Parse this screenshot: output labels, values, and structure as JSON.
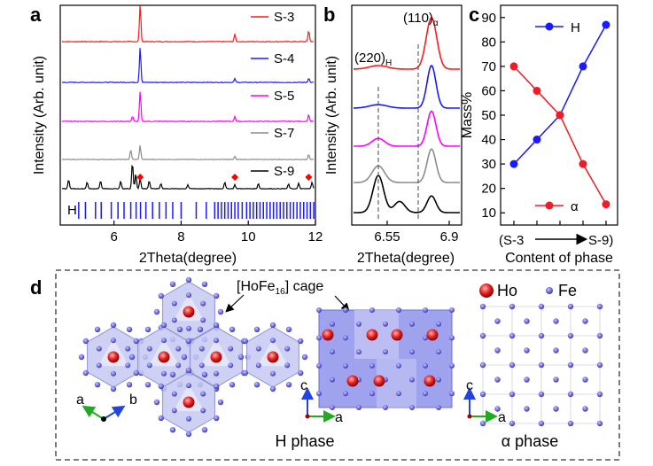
{
  "panel_labels": {
    "a": "a",
    "b": "b",
    "c": "c",
    "d": "d"
  },
  "chart_data": [
    {
      "type": "line",
      "panel": "a",
      "xlabel": "2Theta(degree)",
      "ylabel": "Intensity (Arb. unit)",
      "xlim": [
        4.4,
        12.0
      ],
      "xticks": [
        "6",
        "8",
        "10",
        "12"
      ],
      "series": [
        {
          "name": "S-3",
          "color": "#ff1a1a",
          "peaks": [
            [
              6.78,
              1.0
            ],
            [
              9.6,
              0.2
            ],
            [
              11.8,
              0.3
            ]
          ]
        },
        {
          "name": "S-4",
          "color": "#1a1aff",
          "peaks": [
            [
              6.78,
              1.0
            ],
            [
              9.6,
              0.1
            ],
            [
              11.8,
              0.12
            ]
          ]
        },
        {
          "name": "S-5",
          "color": "#ff00ff",
          "peaks": [
            [
              6.55,
              0.15
            ],
            [
              6.78,
              0.9
            ],
            [
              9.6,
              0.15
            ],
            [
              11.8,
              0.2
            ]
          ]
        },
        {
          "name": "S-7",
          "color": "#8c8c8c",
          "peaks": [
            [
              6.5,
              0.35
            ],
            [
              6.78,
              0.5
            ],
            [
              9.6,
              0.1
            ],
            [
              11.8,
              0.18
            ]
          ]
        },
        {
          "name": "S-9",
          "color": "#000000",
          "peaks": [
            [
              4.65,
              0.35
            ],
            [
              5.2,
              0.25
            ],
            [
              5.6,
              0.3
            ],
            [
              6.2,
              0.28
            ],
            [
              6.55,
              1.0
            ],
            [
              6.65,
              0.55
            ],
            [
              6.78,
              0.4
            ],
            [
              7.05,
              0.3
            ],
            [
              7.4,
              0.2
            ],
            [
              8.2,
              0.15
            ],
            [
              9.3,
              0.25
            ],
            [
              9.6,
              0.15
            ],
            [
              10.3,
              0.2
            ],
            [
              11.2,
              0.18
            ],
            [
              11.5,
              0.2
            ],
            [
              11.9,
              0.25
            ]
          ]
        }
      ],
      "reference_label": "H",
      "reference_color": "#1a1aff",
      "marker_color": "#ff0000",
      "marker_positions": [
        6.78,
        9.6,
        11.8
      ]
    },
    {
      "type": "line",
      "panel": "b",
      "xlabel": "2Theta(degree)",
      "ylabel": "Intensity (Arb. unit)",
      "xlim": [
        6.35,
        6.97
      ],
      "xticks": [
        "6.55",
        "6.9"
      ],
      "annotations": {
        "h_peak": "(220)",
        "h_sub": "H",
        "a_peak": "(110)",
        "a_sub": "α"
      },
      "dashed_positions": [
        6.5,
        6.8
      ],
      "series": [
        {
          "name": "S-3",
          "color": "#ff1a1a"
        },
        {
          "name": "S-4",
          "color": "#1a1aff"
        },
        {
          "name": "S-5",
          "color": "#ff00ff"
        },
        {
          "name": "S-7",
          "color": "#8c8c8c"
        },
        {
          "name": "S-9",
          "color": "#000000"
        }
      ]
    },
    {
      "type": "line",
      "panel": "c",
      "xlabel": "Content of phase",
      "ylabel": "Mass%",
      "ylim": [
        5,
        95
      ],
      "yticks": [
        10,
        20,
        30,
        40,
        50,
        60,
        70,
        80,
        90
      ],
      "x": [
        1,
        2,
        3,
        4,
        5
      ],
      "xaxis_start": "(S-3",
      "xaxis_end": "S-9)",
      "series": [
        {
          "name": "H",
          "color": "#1a1aff",
          "values": [
            30,
            40,
            50,
            70,
            87
          ]
        },
        {
          "name": "α",
          "color": "#ee1c25",
          "values": [
            70,
            60,
            50,
            30,
            13.5
          ]
        }
      ]
    }
  ],
  "panel_d": {
    "cage_label": "[HoFe",
    "cage_sub": "16",
    "cage_end": "] cage",
    "legend_ho": "Ho",
    "legend_fe": "Fe",
    "h_phase": "H phase",
    "alpha_phase": "α phase",
    "axis_a": "a",
    "axis_b": "b",
    "axis_c": "c"
  }
}
